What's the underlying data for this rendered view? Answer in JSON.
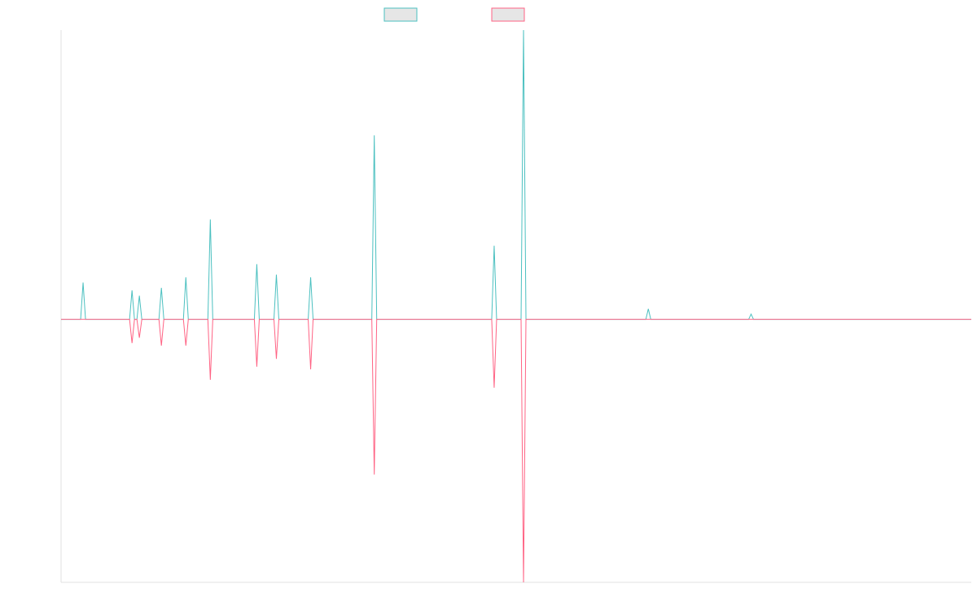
{
  "chart_data": {
    "type": "line",
    "x": [
      0,
      8,
      9,
      10,
      28,
      29,
      30,
      31,
      32,
      33,
      40,
      41,
      42,
      50,
      51,
      52,
      60,
      61,
      62,
      79,
      80,
      81,
      87,
      88,
      89,
      101,
      102,
      103,
      127,
      128,
      129,
      176,
      177,
      178,
      188,
      189,
      190,
      239,
      240,
      241,
      281,
      282,
      283,
      372
    ],
    "series": [
      {
        "color": "#4bc0c0",
        "values": [
          0,
          0,
          0.14,
          0,
          0,
          0.11,
          0,
          0,
          0.09,
          0,
          0,
          0.12,
          0,
          0,
          0.16,
          0,
          0,
          0.38,
          0,
          0,
          0.21,
          0,
          0,
          0.17,
          0,
          0,
          0.16,
          0,
          0,
          0.7,
          0,
          0,
          0.28,
          0,
          0,
          1.1,
          0,
          0,
          0.04,
          0,
          0,
          0.02,
          0,
          0
        ]
      },
      {
        "color": "#ff6384",
        "values": [
          0,
          0,
          0,
          0,
          0,
          -0.09,
          0,
          0,
          -0.07,
          0,
          0,
          -0.1,
          0,
          0,
          -0.1,
          0,
          0,
          -0.23,
          0,
          0,
          -0.18,
          0,
          0,
          -0.15,
          0,
          0,
          -0.19,
          0,
          0,
          -0.59,
          0,
          0,
          -0.26,
          0,
          0,
          -1,
          0,
          0,
          0,
          0,
          0,
          0,
          0,
          0
        ]
      }
    ],
    "xlim": [
      0,
      372
    ],
    "ylim": [
      -1,
      1.1
    ]
  }
}
